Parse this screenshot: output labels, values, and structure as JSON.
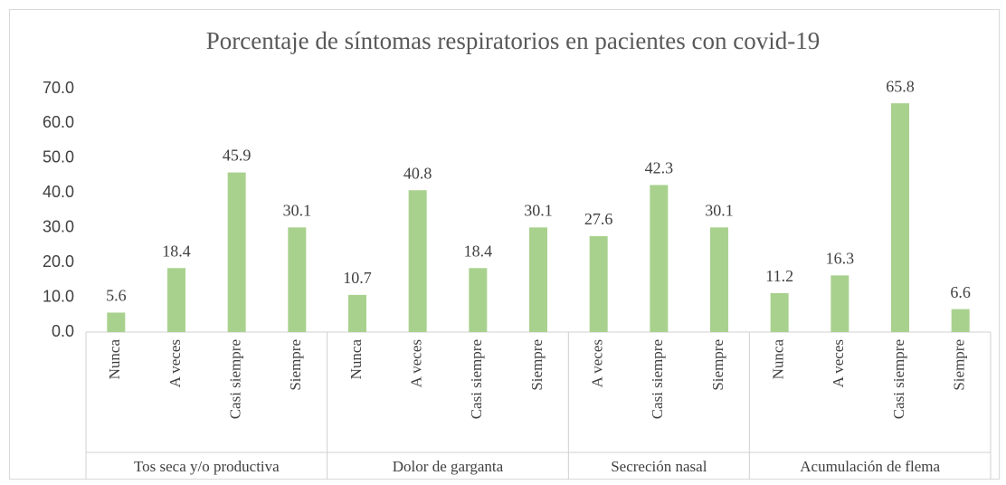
{
  "chart_data": {
    "type": "bar",
    "title": "Porcentaje de síntomas respiratorios en pacientes con covid-19",
    "color": "#a9d18e",
    "groups": [
      {
        "name": "Tos seca y/o productiva",
        "categories": [
          "Nunca",
          "A veces",
          "Casi siempre",
          "Siempre"
        ],
        "values": [
          5.6,
          18.4,
          45.9,
          30.1
        ]
      },
      {
        "name": "Dolor de garganta",
        "categories": [
          "Nunca",
          "A veces",
          "Casi siempre",
          "Siempre"
        ],
        "values": [
          10.7,
          40.8,
          18.4,
          30.1
        ]
      },
      {
        "name": "Secreción nasal",
        "categories": [
          "A veces",
          "Casi siempre",
          "Siempre"
        ],
        "values": [
          27.6,
          42.3,
          30.1
        ]
      },
      {
        "name": "Acumulación de flema",
        "categories": [
          "Nunca",
          "A veces",
          "Casi siempre",
          "Siempre"
        ],
        "values": [
          11.2,
          16.3,
          65.8,
          6.6
        ]
      }
    ],
    "ylim": [
      0,
      70
    ],
    "yticks": [
      {
        "value": 0,
        "label": "0.0"
      },
      {
        "value": 10,
        "label": "10.0"
      },
      {
        "value": 20,
        "label": "20.0"
      },
      {
        "value": 30,
        "label": "30.0"
      },
      {
        "value": 40,
        "label": "40.0"
      },
      {
        "value": 50,
        "label": "50.0"
      },
      {
        "value": 60,
        "label": "60.0"
      },
      {
        "value": 70,
        "label": "70.0"
      }
    ],
    "grid": false
  }
}
